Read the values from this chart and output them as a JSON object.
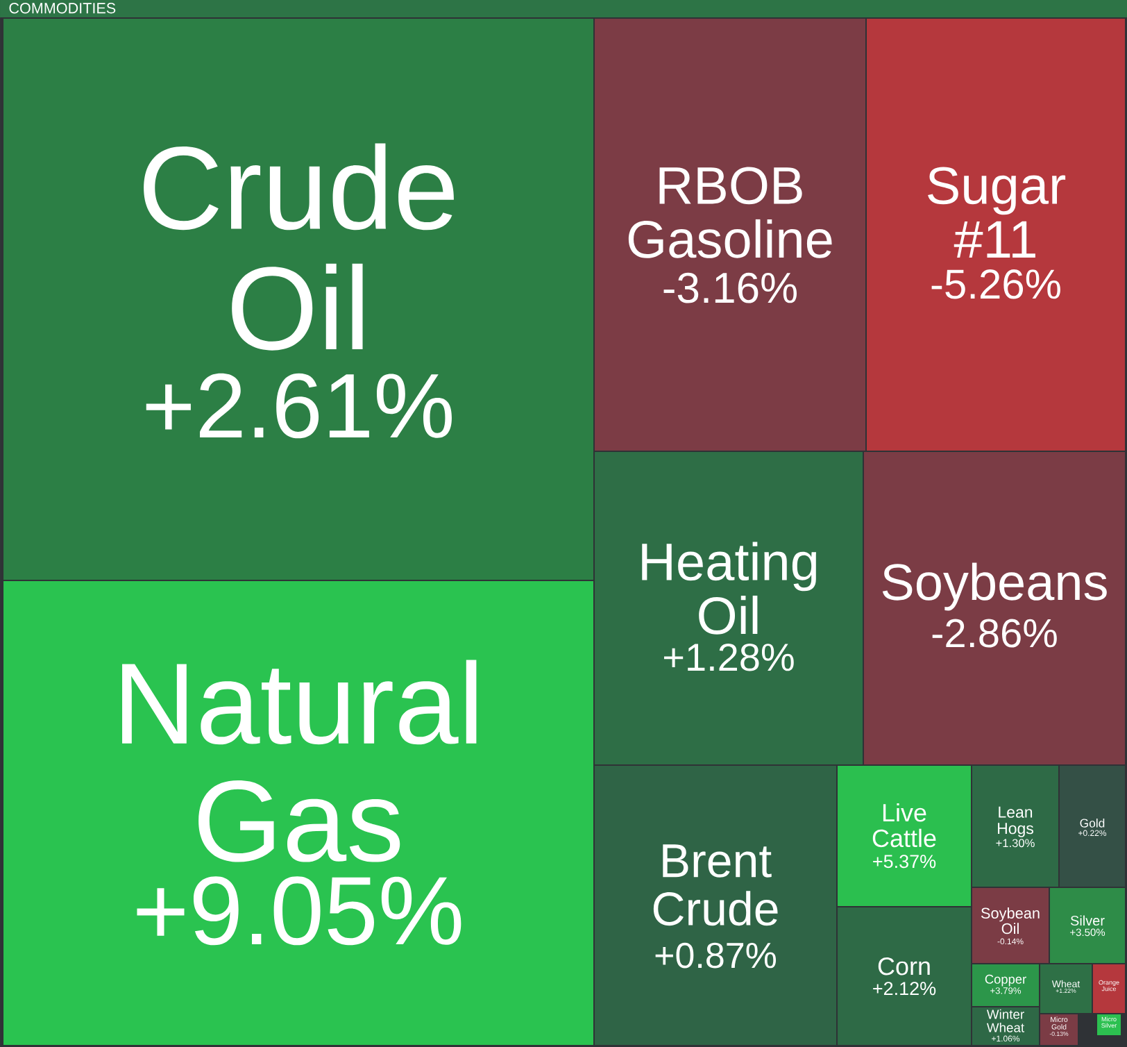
{
  "chart_data": {
    "type": "other",
    "title": "COMMODITIES",
    "categories": [
      "Crude Oil",
      "Natural Gas",
      "RBOB Gasoline",
      "Sugar #11",
      "Heating Oil",
      "Soybeans",
      "Brent Crude",
      "Live Cattle",
      "Corn",
      "Lean Hogs",
      "Gold",
      "Soybean Oil",
      "Silver",
      "Copper",
      "Winter Wheat",
      "Wheat",
      "Orange Juice",
      "Micro Gold",
      "Micro Silver"
    ],
    "values": [
      2.61,
      9.05,
      -3.16,
      -5.26,
      1.28,
      -2.86,
      0.87,
      5.37,
      2.12,
      1.3,
      0.22,
      -0.14,
      3.5,
      3.79,
      1.06,
      1.22,
      null,
      -0.13,
      null
    ],
    "value_labels": [
      "+2.61%",
      "+9.05%",
      "-3.16%",
      "-5.26%",
      "+1.28%",
      "-2.86%",
      "+0.87%",
      "+5.37%",
      "+2.12%",
      "+1.30%",
      "+0.22%",
      "-0.14%",
      "+3.50%",
      "+3.79%",
      "+1.06%",
      "+1.22%",
      null,
      "-0.13%",
      null
    ],
    "colors": [
      "#2c7f45",
      "#2ac350",
      "#7c3c45",
      "#b5383d",
      "#2e6e46",
      "#7b3c45",
      "#2f6446",
      "#2bbf4f",
      "#2e6a46",
      "#2e6a46",
      "#345046",
      "#7b3c45",
      "#2e8c48",
      "#2c964a",
      "#2e6846",
      "#2e7046",
      "#b5383d",
      "#7b3c45",
      "#2cc050"
    ]
  }
}
